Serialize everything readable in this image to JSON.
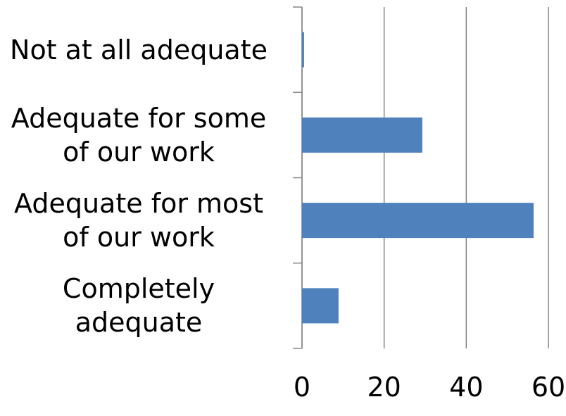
{
  "chart_data": {
    "type": "bar",
    "orientation": "horizontal",
    "categories": [
      "Not at all adequate",
      "Adequate for some\nof our work",
      "Adequate for most\nof our work",
      "Completely\nadequate"
    ],
    "values": [
      0.5,
      29.3,
      56.4,
      8.9
    ],
    "color": "#4f81bd",
    "xlim": [
      0,
      60
    ],
    "xticks": [
      0,
      20,
      40,
      60
    ],
    "grid": true
  }
}
